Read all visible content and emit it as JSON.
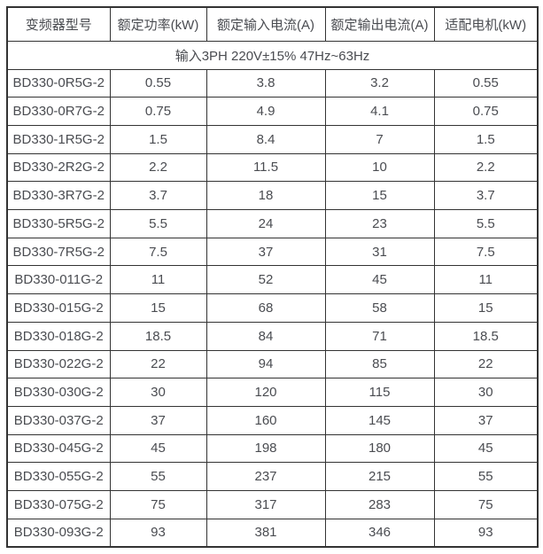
{
  "page": {
    "background": "#ffffff"
  },
  "colors": {
    "border": "#333333",
    "text": "#4a4c51",
    "background": "#ffffff"
  },
  "table": {
    "headers": [
      "变频器型号",
      "额定功率(kW)",
      "额定输入电流(A)",
      "额定输出电流(A)",
      "适配电机(kW)"
    ],
    "input_spec_row": "输入3PH 220V±15% 47Hz~63Hz",
    "rows": [
      [
        "BD330-0R5G-2",
        "0.55",
        "3.8",
        "3.2",
        "0.55"
      ],
      [
        "BD330-0R7G-2",
        "0.75",
        "4.9",
        "4.1",
        "0.75"
      ],
      [
        "BD330-1R5G-2",
        "1.5",
        "8.4",
        "7",
        "1.5"
      ],
      [
        "BD330-2R2G-2",
        "2.2",
        "11.5",
        "10",
        "2.2"
      ],
      [
        "BD330-3R7G-2",
        "3.7",
        "18",
        "15",
        "3.7"
      ],
      [
        "BD330-5R5G-2",
        "5.5",
        "24",
        "23",
        "5.5"
      ],
      [
        "BD330-7R5G-2",
        "7.5",
        "37",
        "31",
        "7.5"
      ],
      [
        "BD330-011G-2",
        "11",
        "52",
        "45",
        "11"
      ],
      [
        "BD330-015G-2",
        "15",
        "68",
        "58",
        "15"
      ],
      [
        "BD330-018G-2",
        "18.5",
        "84",
        "71",
        "18.5"
      ],
      [
        "BD330-022G-2",
        "22",
        "94",
        "85",
        "22"
      ],
      [
        "BD330-030G-2",
        "30",
        "120",
        "115",
        "30"
      ],
      [
        "BD330-037G-2",
        "37",
        "160",
        "145",
        "37"
      ],
      [
        "BD330-045G-2",
        "45",
        "198",
        "180",
        "45"
      ],
      [
        "BD330-055G-2",
        "55",
        "237",
        "215",
        "55"
      ],
      [
        "BD330-075G-2",
        "75",
        "317",
        "283",
        "75"
      ],
      [
        "BD330-093G-2",
        "93",
        "381",
        "346",
        "93"
      ]
    ]
  },
  "chart_data": {
    "type": "table",
    "title": "",
    "columns": [
      "变频器型号",
      "额定功率(kW)",
      "额定输入电流(A)",
      "额定输出电流(A)",
      "适配电机(kW)"
    ],
    "merged_note": "输入3PH 220V±15% 47Hz~63Hz",
    "rows": [
      [
        "BD330-0R5G-2",
        0.55,
        3.8,
        3.2,
        0.55
      ],
      [
        "BD330-0R7G-2",
        0.75,
        4.9,
        4.1,
        0.75
      ],
      [
        "BD330-1R5G-2",
        1.5,
        8.4,
        7,
        1.5
      ],
      [
        "BD330-2R2G-2",
        2.2,
        11.5,
        10,
        2.2
      ],
      [
        "BD330-3R7G-2",
        3.7,
        18,
        15,
        3.7
      ],
      [
        "BD330-5R5G-2",
        5.5,
        24,
        23,
        5.5
      ],
      [
        "BD330-7R5G-2",
        7.5,
        37,
        31,
        7.5
      ],
      [
        "BD330-011G-2",
        11,
        52,
        45,
        11
      ],
      [
        "BD330-015G-2",
        15,
        68,
        58,
        15
      ],
      [
        "BD330-018G-2",
        18.5,
        84,
        71,
        18.5
      ],
      [
        "BD330-022G-2",
        22,
        94,
        85,
        22
      ],
      [
        "BD330-030G-2",
        30,
        120,
        115,
        30
      ],
      [
        "BD330-037G-2",
        37,
        160,
        145,
        37
      ],
      [
        "BD330-045G-2",
        45,
        198,
        180,
        45
      ],
      [
        "BD330-055G-2",
        55,
        237,
        215,
        55
      ],
      [
        "BD330-075G-2",
        75,
        317,
        283,
        75
      ],
      [
        "BD330-093G-2",
        93,
        381,
        346,
        93
      ]
    ]
  }
}
